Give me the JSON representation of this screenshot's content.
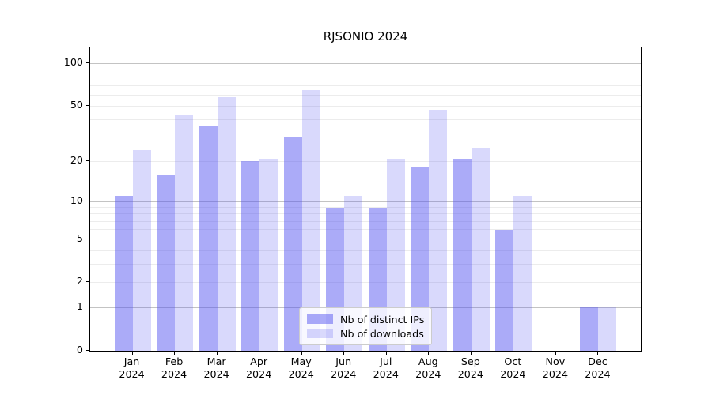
{
  "chart_data": {
    "type": "bar",
    "title": "RJSONIO 2024",
    "categories": [
      "Jan",
      "Feb",
      "Mar",
      "Apr",
      "May",
      "Jun",
      "Jul",
      "Aug",
      "Sep",
      "Oct",
      "Nov",
      "Dec"
    ],
    "year_label": "2024",
    "series": [
      {
        "name": "Nb of distinct IPs",
        "key": "distinct-ips",
        "values": [
          11,
          16,
          36,
          20,
          30,
          9,
          9,
          18,
          21,
          6,
          0,
          1
        ]
      },
      {
        "name": "Nb of downloads",
        "key": "downloads",
        "values": [
          24,
          43,
          58,
          21,
          65,
          11,
          21,
          47,
          25,
          11,
          0,
          1
        ]
      }
    ],
    "scale": "log1p",
    "ylim": [
      0,
      130
    ],
    "yticks": [
      0,
      1,
      2,
      5,
      10,
      20,
      50,
      100
    ],
    "grid_minor_values": [
      2,
      3,
      4,
      5,
      6,
      7,
      8,
      9,
      20,
      30,
      40,
      50,
      60,
      70,
      80,
      90
    ],
    "grid_major_values": [
      1,
      10,
      100
    ],
    "grid": true,
    "legend_position": "lower center",
    "colors": {
      "bar_distinct_ips": "rgba(80,80,240,0.48)",
      "bar_downloads": "rgba(80,80,240,0.22)",
      "grid_minor": "#ececec",
      "grid_major": "#c3c3c3",
      "spine": "#000000",
      "legend_border": "#cccccc",
      "text": "#000000"
    }
  }
}
